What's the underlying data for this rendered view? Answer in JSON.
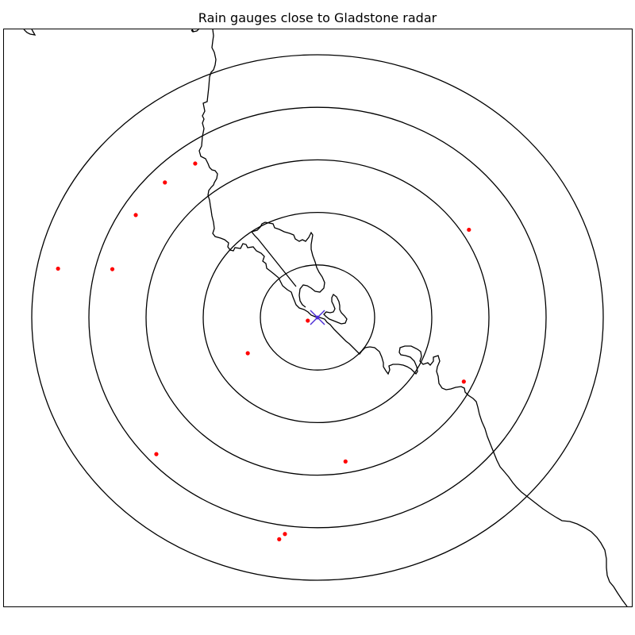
{
  "figure": {
    "title": "Rain gauges close to Gladstone radar"
  },
  "map": {
    "coastline_color": "#000000",
    "range_ring_color": "#000000",
    "range_rings": [
      1,
      2,
      3,
      4,
      5
    ],
    "radar": {
      "marker": "x-cross",
      "marker_color": "#4b2bd6",
      "x": 0,
      "y": 0
    },
    "gauge_color": "#ff0000",
    "rain_gauges": [
      {
        "x": -2.14,
        "y": 2.93
      },
      {
        "x": -2.67,
        "y": 2.57
      },
      {
        "x": -3.18,
        "y": 1.95
      },
      {
        "x": -4.54,
        "y": 0.93
      },
      {
        "x": -3.59,
        "y": 0.92
      },
      {
        "x": 2.65,
        "y": 1.67
      },
      {
        "x": -0.17,
        "y": -0.06
      },
      {
        "x": -1.22,
        "y": -0.68
      },
      {
        "x": 2.56,
        "y": -1.22
      },
      {
        "x": -2.82,
        "y": -2.6
      },
      {
        "x": 0.49,
        "y": -2.74
      },
      {
        "x": -0.57,
        "y": -4.12
      },
      {
        "x": -0.67,
        "y": -4.22
      }
    ]
  }
}
